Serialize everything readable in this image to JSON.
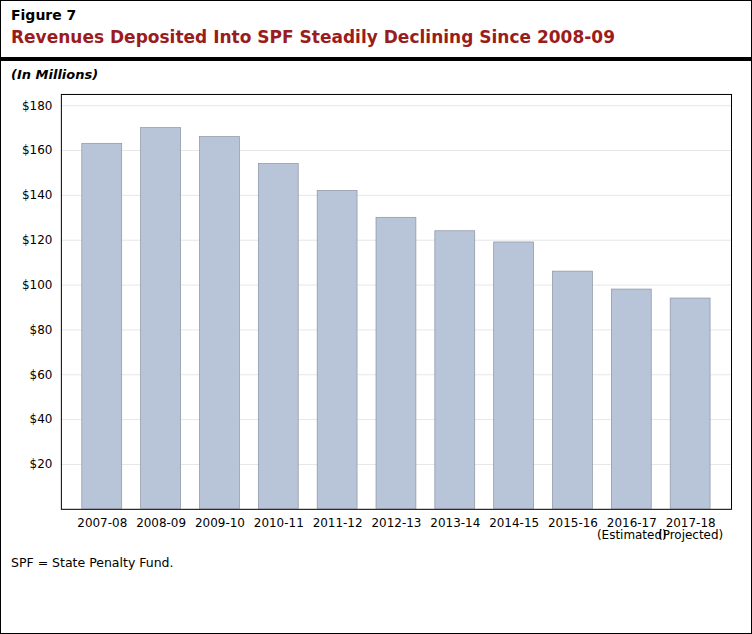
{
  "chart_data": {
    "type": "bar",
    "figure_label": "Figure 7",
    "title": "Revenues Deposited Into SPF Steadily Declining Since 2008-09",
    "subtitle": "(In Millions)",
    "footnote": "SPF = State Penalty Fund.",
    "categories": [
      "2007-08",
      "2008-09",
      "2009-10",
      "2010-11",
      "2011-12",
      "2012-13",
      "2013-14",
      "2014-15",
      "2015-16",
      "2016-17\n(Estimated)",
      "2017-18\n(Projected)"
    ],
    "values": [
      163,
      170,
      166,
      154,
      142,
      130,
      124,
      119,
      106,
      98,
      94
    ],
    "color": "#b8c4d8",
    "ylim": [
      0,
      185
    ],
    "yticks": [
      {
        "value": 0,
        "label": ""
      },
      {
        "value": 20,
        "label": "$20"
      },
      {
        "value": 40,
        "label": "$40"
      },
      {
        "value": 60,
        "label": "$60"
      },
      {
        "value": 80,
        "label": "$80"
      },
      {
        "value": 100,
        "label": "$100"
      },
      {
        "value": 120,
        "label": "$120"
      },
      {
        "value": 140,
        "label": "$140"
      },
      {
        "value": 160,
        "label": "$160"
      },
      {
        "value": 180,
        "label": "$180"
      }
    ],
    "grid": true
  }
}
